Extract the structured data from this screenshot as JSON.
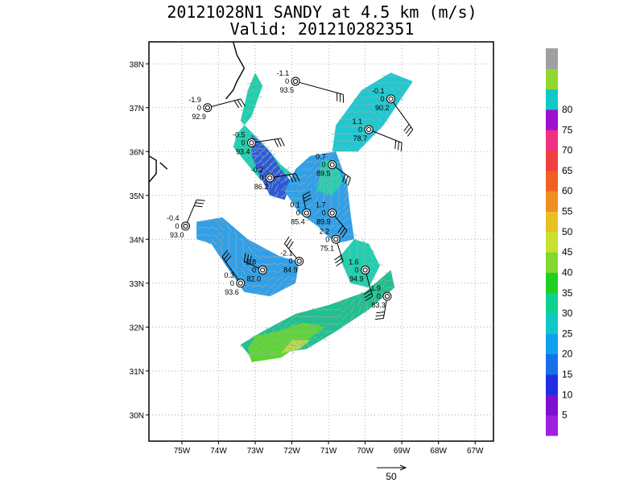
{
  "title": {
    "line1": "20121028N1 SANDY at 4.5 km (m/s)",
    "line2": "Valid: 201210282351"
  },
  "map": {
    "lon_range": [
      -75.9,
      -66.5
    ],
    "lat_range": [
      29.4,
      38.5
    ],
    "lon_ticks": [
      -75,
      -74,
      -73,
      -72,
      -71,
      -70,
      -69,
      -68,
      -67
    ],
    "lon_tick_labels": [
      "75W",
      "74W",
      "73W",
      "72W",
      "71W",
      "70W",
      "69W",
      "68W",
      "67W"
    ],
    "lat_ticks": [
      30,
      31,
      32,
      33,
      34,
      35,
      36,
      37,
      38
    ],
    "lat_tick_labels": [
      "30N",
      "31N",
      "32N",
      "33N",
      "34N",
      "35N",
      "36N",
      "37N",
      "38N"
    ],
    "grid": "dotted",
    "coastline_color": "#000000",
    "wind_vector_color": "#a9a9a9",
    "barb_color": "#000000"
  },
  "wind_regions": [
    {
      "name": "northwest",
      "color": "#1fd0b0",
      "polygon": [
        [
          -73.4,
          36.7
        ],
        [
          -72.7,
          36.1
        ],
        [
          -72.3,
          35.7
        ],
        [
          -72.0,
          35.5
        ],
        [
          -72.4,
          35.2
        ],
        [
          -72.9,
          35.4
        ],
        [
          -73.3,
          35.8
        ],
        [
          -73.6,
          36.1
        ],
        [
          -73.5,
          36.4
        ],
        [
          -73.1,
          36.8
        ],
        [
          -72.8,
          37.5
        ],
        [
          -73.0,
          37.8
        ],
        [
          -73.2,
          37.4
        ]
      ]
    },
    {
      "name": "northwest-core",
      "color": "#2a5bd8",
      "polygon": [
        [
          -73.1,
          36.4
        ],
        [
          -72.6,
          36.0
        ],
        [
          -72.3,
          35.6
        ],
        [
          -72.0,
          35.3
        ],
        [
          -72.2,
          34.9
        ],
        [
          -72.6,
          35.0
        ],
        [
          -72.9,
          35.5
        ],
        [
          -73.1,
          35.9
        ]
      ]
    },
    {
      "name": "northeast",
      "color": "#20c8d0",
      "polygon": [
        [
          -70.1,
          37.4
        ],
        [
          -69.3,
          37.8
        ],
        [
          -68.7,
          37.6
        ],
        [
          -69.5,
          36.6
        ],
        [
          -70.2,
          36.0
        ],
        [
          -70.9,
          36.0
        ],
        [
          -70.8,
          36.6
        ]
      ]
    },
    {
      "name": "center",
      "color": "#30a0e8",
      "polygon": [
        [
          -71.5,
          35.9
        ],
        [
          -70.8,
          36.0
        ],
        [
          -70.5,
          35.3
        ],
        [
          -70.4,
          34.6
        ],
        [
          -70.3,
          34.0
        ],
        [
          -70.8,
          33.9
        ],
        [
          -71.3,
          34.3
        ],
        [
          -71.8,
          34.6
        ],
        [
          -72.2,
          35.1
        ],
        [
          -71.9,
          35.6
        ]
      ]
    },
    {
      "name": "center-cyan",
      "color": "#1fd0b0",
      "polygon": [
        [
          -71.2,
          35.8
        ],
        [
          -70.8,
          35.8
        ],
        [
          -70.6,
          35.3
        ],
        [
          -70.9,
          35.0
        ],
        [
          -71.3,
          35.1
        ]
      ]
    },
    {
      "name": "center-south",
      "color": "#1fd0b0",
      "polygon": [
        [
          -70.3,
          34.0
        ],
        [
          -69.9,
          33.9
        ],
        [
          -69.6,
          33.4
        ],
        [
          -69.9,
          32.9
        ],
        [
          -70.4,
          33.0
        ],
        [
          -70.7,
          33.6
        ]
      ]
    },
    {
      "name": "west",
      "color": "#30a0e8",
      "polygon": [
        [
          -74.6,
          34.4
        ],
        [
          -73.9,
          34.5
        ],
        [
          -73.2,
          34.0
        ],
        [
          -72.3,
          33.6
        ],
        [
          -71.8,
          33.5
        ],
        [
          -71.9,
          33.0
        ],
        [
          -72.6,
          32.7
        ],
        [
          -73.3,
          32.8
        ],
        [
          -73.8,
          33.4
        ],
        [
          -74.2,
          33.9
        ],
        [
          -74.6,
          34.0
        ]
      ]
    },
    {
      "name": "south",
      "color": "#20c090",
      "polygon": [
        [
          -72.8,
          31.9
        ],
        [
          -71.9,
          32.3
        ],
        [
          -71.0,
          32.5
        ],
        [
          -70.0,
          32.8
        ],
        [
          -69.3,
          33.3
        ],
        [
          -69.2,
          32.9
        ],
        [
          -69.9,
          32.4
        ],
        [
          -70.8,
          31.9
        ],
        [
          -71.6,
          31.5
        ],
        [
          -72.5,
          31.4
        ],
        [
          -73.1,
          31.3
        ],
        [
          -73.4,
          31.6
        ]
      ]
    },
    {
      "name": "south-green",
      "color": "#58d830",
      "polygon": [
        [
          -73.1,
          31.2
        ],
        [
          -72.3,
          31.3
        ],
        [
          -71.6,
          31.7
        ],
        [
          -71.1,
          32.0
        ],
        [
          -71.7,
          32.1
        ],
        [
          -72.4,
          31.9
        ],
        [
          -73.0,
          31.8
        ],
        [
          -73.2,
          31.5
        ]
      ]
    },
    {
      "name": "south-yellow",
      "color": "#b8e040",
      "polygon": [
        [
          -72.3,
          31.4
        ],
        [
          -71.8,
          31.5
        ],
        [
          -71.5,
          31.7
        ],
        [
          -72.0,
          31.7
        ]
      ]
    }
  ],
  "coastline": [
    [
      [
        -73.6,
        38.5
      ],
      [
        -73.5,
        38.2
      ],
      [
        -73.3,
        37.9
      ],
      [
        -73.5,
        37.6
      ],
      [
        -73.6,
        37.4
      ],
      [
        -73.8,
        37.2
      ]
    ],
    [
      [
        -75.9,
        35.9
      ],
      [
        -75.7,
        35.8
      ],
      [
        -75.7,
        35.5
      ],
      [
        -75.9,
        35.3
      ]
    ],
    [
      [
        -75.6,
        35.75
      ],
      [
        -75.4,
        35.6
      ]
    ]
  ],
  "observations": [
    {
      "top": "-1.1",
      "mid": "0",
      "bottom": "93.5",
      "lon": -71.9,
      "lat": 37.6,
      "barb_to": [
        -70.6,
        37.3
      ]
    },
    {
      "top": "-0.1",
      "mid": "0",
      "bottom": "90.2",
      "lon": -69.3,
      "lat": 37.2,
      "barb_to": [
        -68.7,
        36.5
      ]
    },
    {
      "top": "-1.9",
      "mid": "0",
      "bottom": "92.9",
      "lon": -74.3,
      "lat": 37.0,
      "barb_to": [
        -73.4,
        37.2
      ]
    },
    {
      "top": "1.1",
      "mid": "0",
      "bottom": "78.7",
      "lon": -69.9,
      "lat": 36.5,
      "barb_to": [
        -69.0,
        36.2
      ]
    },
    {
      "top": "-0.5",
      "mid": "0",
      "bottom": "93.4",
      "lon": -73.1,
      "lat": 36.2,
      "barb_to": [
        -72.3,
        36.3
      ]
    },
    {
      "top": "0.7",
      "mid": "0",
      "bottom": "89.5",
      "lon": -70.9,
      "lat": 35.7,
      "barb_to": [
        -70.4,
        35.4
      ]
    },
    {
      "top": "-0.2",
      "mid": "0",
      "bottom": "86.2",
      "lon": -72.6,
      "lat": 35.4,
      "barb_to": [
        -71.9,
        35.5
      ]
    },
    {
      "top": "1.7",
      "mid": "0",
      "bottom": "89.9",
      "lon": -70.9,
      "lat": 34.6,
      "barb_to": [
        -70.5,
        34.2
      ]
    },
    {
      "top": "0.1",
      "mid": "0",
      "bottom": "85.4",
      "lon": -71.6,
      "lat": 34.6,
      "barb_to": [
        -71.7,
        35.0
      ]
    },
    {
      "top": "-0.4",
      "mid": "0",
      "bottom": "93.0",
      "lon": -74.9,
      "lat": 34.3,
      "barb_to": [
        -74.6,
        34.9
      ]
    },
    {
      "top": "2.2",
      "mid": "0",
      "bottom": "75.1",
      "lon": -70.8,
      "lat": 34.0,
      "barb_to": [
        -70.6,
        33.5
      ]
    },
    {
      "top": "-2.1",
      "mid": "0",
      "bottom": "84.9",
      "lon": -71.8,
      "lat": 33.5,
      "barb_to": [
        -72.2,
        33.9
      ]
    },
    {
      "top": "-2.8",
      "mid": "0",
      "bottom": "82.0",
      "lon": -72.8,
      "lat": 33.3,
      "barb_to": [
        -73.3,
        33.5
      ]
    },
    {
      "top": "1.6",
      "mid": "0",
      "bottom": "94.9",
      "lon": -70.0,
      "lat": 33.3,
      "barb_to": [
        -69.8,
        32.7
      ]
    },
    {
      "top": "0.3",
      "mid": "0",
      "bottom": "93.6",
      "lon": -73.4,
      "lat": 33.0,
      "barb_to": [
        -73.9,
        33.6
      ]
    },
    {
      "top": "1.9",
      "mid": "0",
      "bottom": "83.3",
      "lon": -69.4,
      "lat": 32.7,
      "barb_to": [
        -69.5,
        32.2
      ]
    }
  ],
  "colorbar": {
    "colors": [
      "#a020e0",
      "#8010d0",
      "#2030e0",
      "#1870e8",
      "#10a0f0",
      "#10c8c8",
      "#10d090",
      "#20d020",
      "#80d830",
      "#c8e030",
      "#e8c020",
      "#f09020",
      "#f06020",
      "#f04040",
      "#f03080",
      "#a010d0",
      "#10c8c8",
      "#90d830",
      "#a0a0a0"
    ],
    "labels": [
      "5",
      "10",
      "15",
      "20",
      "25",
      "30",
      "35",
      "40",
      "45",
      "50",
      "55",
      "60",
      "65",
      "70",
      "75",
      "80"
    ]
  },
  "scale_arrow": {
    "label": "50"
  }
}
